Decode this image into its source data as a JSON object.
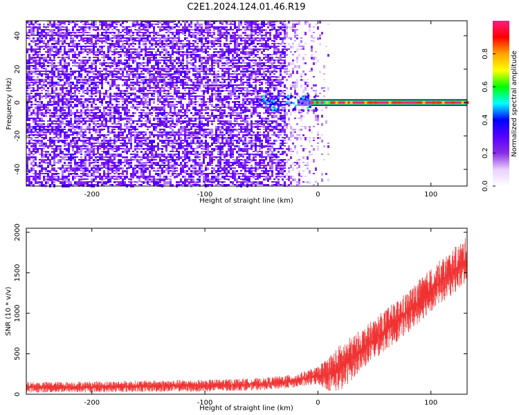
{
  "title": "C2E1.2024.124.01.46.R19",
  "chart_data": [
    {
      "type": "heatmap",
      "xlabel": "Height of straight line (km)",
      "ylabel": "Frequency (Hz)",
      "xlim": [
        -258,
        132
      ],
      "ylim": [
        -50,
        49
      ],
      "xticks": [
        -200,
        -100,
        0,
        100
      ],
      "xtick_labels": [
        "-200",
        "-100",
        "0",
        "100"
      ],
      "yticks": [
        -40,
        -20,
        0,
        20,
        40
      ],
      "ytick_labels": [
        "-40",
        "-20",
        "0",
        "20",
        "40"
      ],
      "colorbar": {
        "label": "Normalized spectral amplitude",
        "range": [
          0,
          1
        ],
        "ticks": [
          0.0,
          0.2,
          0.4,
          0.6,
          0.8
        ],
        "tick_labels": [
          "0.0",
          "0.2",
          "0.4",
          "0.6",
          "0.8"
        ],
        "colors": [
          "#ffffff",
          "#e8d0ff",
          "#8a2be2",
          "#5500ff",
          "#0000ff",
          "#00ffff",
          "#00ff00",
          "#ffff00",
          "#ffa500",
          "#ff0000",
          "#ff1a80"
        ]
      },
      "noise_region_x": [
        -258,
        5
      ],
      "signal_band": {
        "x_start": -55,
        "x_end": 132,
        "frequency": 0
      }
    },
    {
      "type": "area",
      "xlabel": "Height of straight line (km)",
      "ylabel": "SNR (10 * v/v)",
      "xlim": [
        -258,
        132
      ],
      "ylim": [
        0,
        2050
      ],
      "xticks": [
        -200,
        -100,
        0,
        100
      ],
      "xtick_labels": [
        "-200",
        "-100",
        "0",
        "100"
      ],
      "yticks": [
        0,
        500,
        1000,
        1500,
        2000
      ],
      "ytick_labels": [
        "0",
        "500",
        "1000",
        "1500",
        "2000"
      ],
      "series": [
        {
          "color": "#f03232",
          "x": [
            -258,
            -200,
            -150,
            -100,
            -50,
            -20,
            0,
            10,
            20,
            40,
            60,
            80,
            100,
            120,
            132
          ],
          "y_low": [
            20,
            20,
            30,
            30,
            50,
            80,
            120,
            40,
            30,
            320,
            540,
            760,
            1020,
            1240,
            1360
          ],
          "y_high": [
            150,
            160,
            170,
            180,
            200,
            250,
            340,
            480,
            620,
            820,
            1050,
            1280,
            1560,
            1800,
            1950
          ]
        }
      ]
    }
  ]
}
